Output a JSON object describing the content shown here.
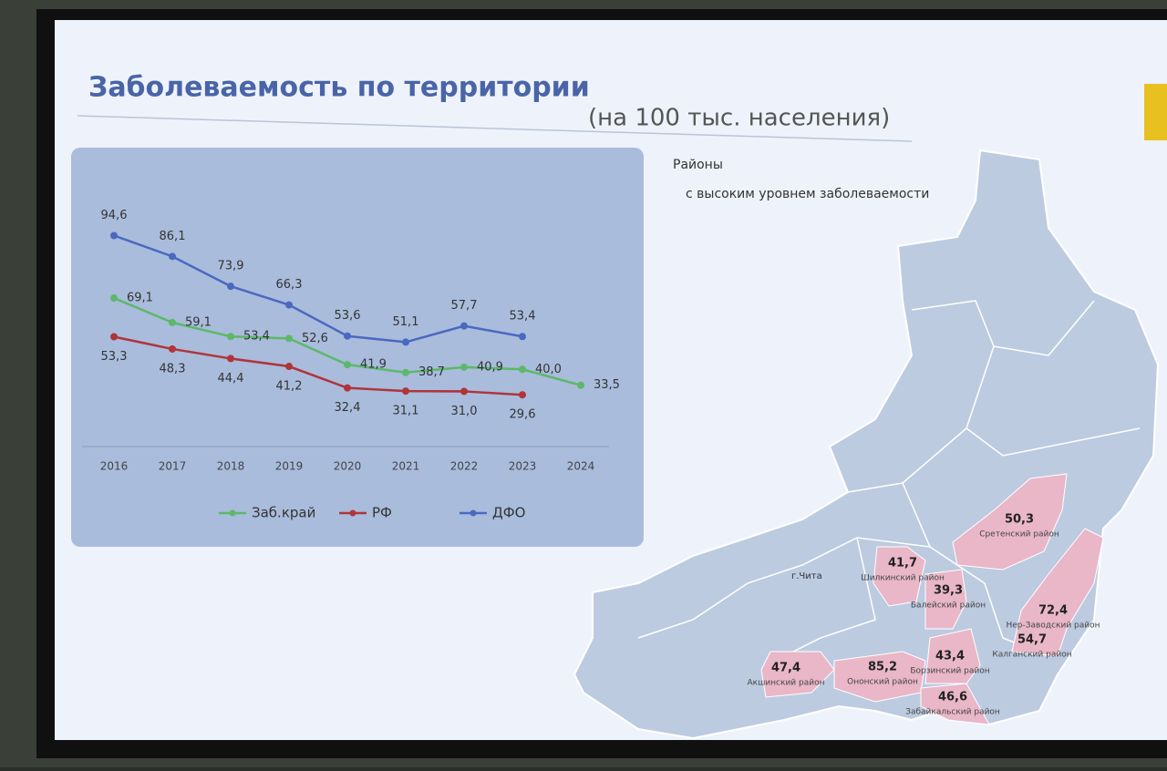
{
  "header": {
    "title": "Заболеваемость по территории",
    "subtitle": "(на 100 тыс. населения)"
  },
  "chart_data": {
    "type": "line",
    "categories": [
      "2016",
      "2017",
      "2018",
      "2019",
      "2020",
      "2021",
      "2022",
      "2023",
      "2024"
    ],
    "series": [
      {
        "name": "Заб.край",
        "color": "#5cb86a",
        "values": [
          69.1,
          59.1,
          53.4,
          52.6,
          41.9,
          38.7,
          40.9,
          40.0,
          33.5
        ],
        "value_labels": [
          "69,1",
          "59,1",
          "53,4",
          "52,6",
          "41,9",
          "38,7",
          "40,9",
          "40,0",
          "33,5"
        ]
      },
      {
        "name": "РФ",
        "color": "#b0343a",
        "values": [
          53.3,
          48.3,
          44.4,
          41.2,
          32.4,
          31.1,
          31.0,
          29.6,
          null
        ],
        "value_labels": [
          "53,3",
          "48,3",
          "44,4",
          "41,2",
          "32,4",
          "31,1",
          "31,0",
          "29,6",
          null
        ]
      },
      {
        "name": "ДФО",
        "color": "#4a68c0",
        "values": [
          94.6,
          86.1,
          73.9,
          66.3,
          53.6,
          51.1,
          57.7,
          53.4,
          null
        ],
        "value_labels": [
          "94,6",
          "86,1",
          "73,9",
          "66,3",
          "53,6",
          "51,1",
          "57,7",
          "53,4",
          null
        ]
      }
    ],
    "ylim": [
      20,
      100
    ],
    "grid": false,
    "legend": "bottom"
  },
  "map": {
    "title_lines": [
      "Районы",
      "с высоким уровнем заболеваемости"
    ],
    "city": "г.Чита",
    "districts": [
      {
        "rate": "50,3",
        "name": "Сретенский район"
      },
      {
        "rate": "41,7",
        "name": "Шилкинский район"
      },
      {
        "rate": "39,3",
        "name": "Балейский район"
      },
      {
        "rate": "72,4",
        "name": "Нер-Заводский район"
      },
      {
        "rate": "54,7",
        "name": "Калганский район"
      },
      {
        "rate": "43,4",
        "name": "Борзинский район"
      },
      {
        "rate": "85,2",
        "name": "Ононский район"
      },
      {
        "rate": "47,4",
        "name": "Акшинский район"
      },
      {
        "rate": "46,6",
        "name": "Забайкальский район"
      }
    ]
  }
}
